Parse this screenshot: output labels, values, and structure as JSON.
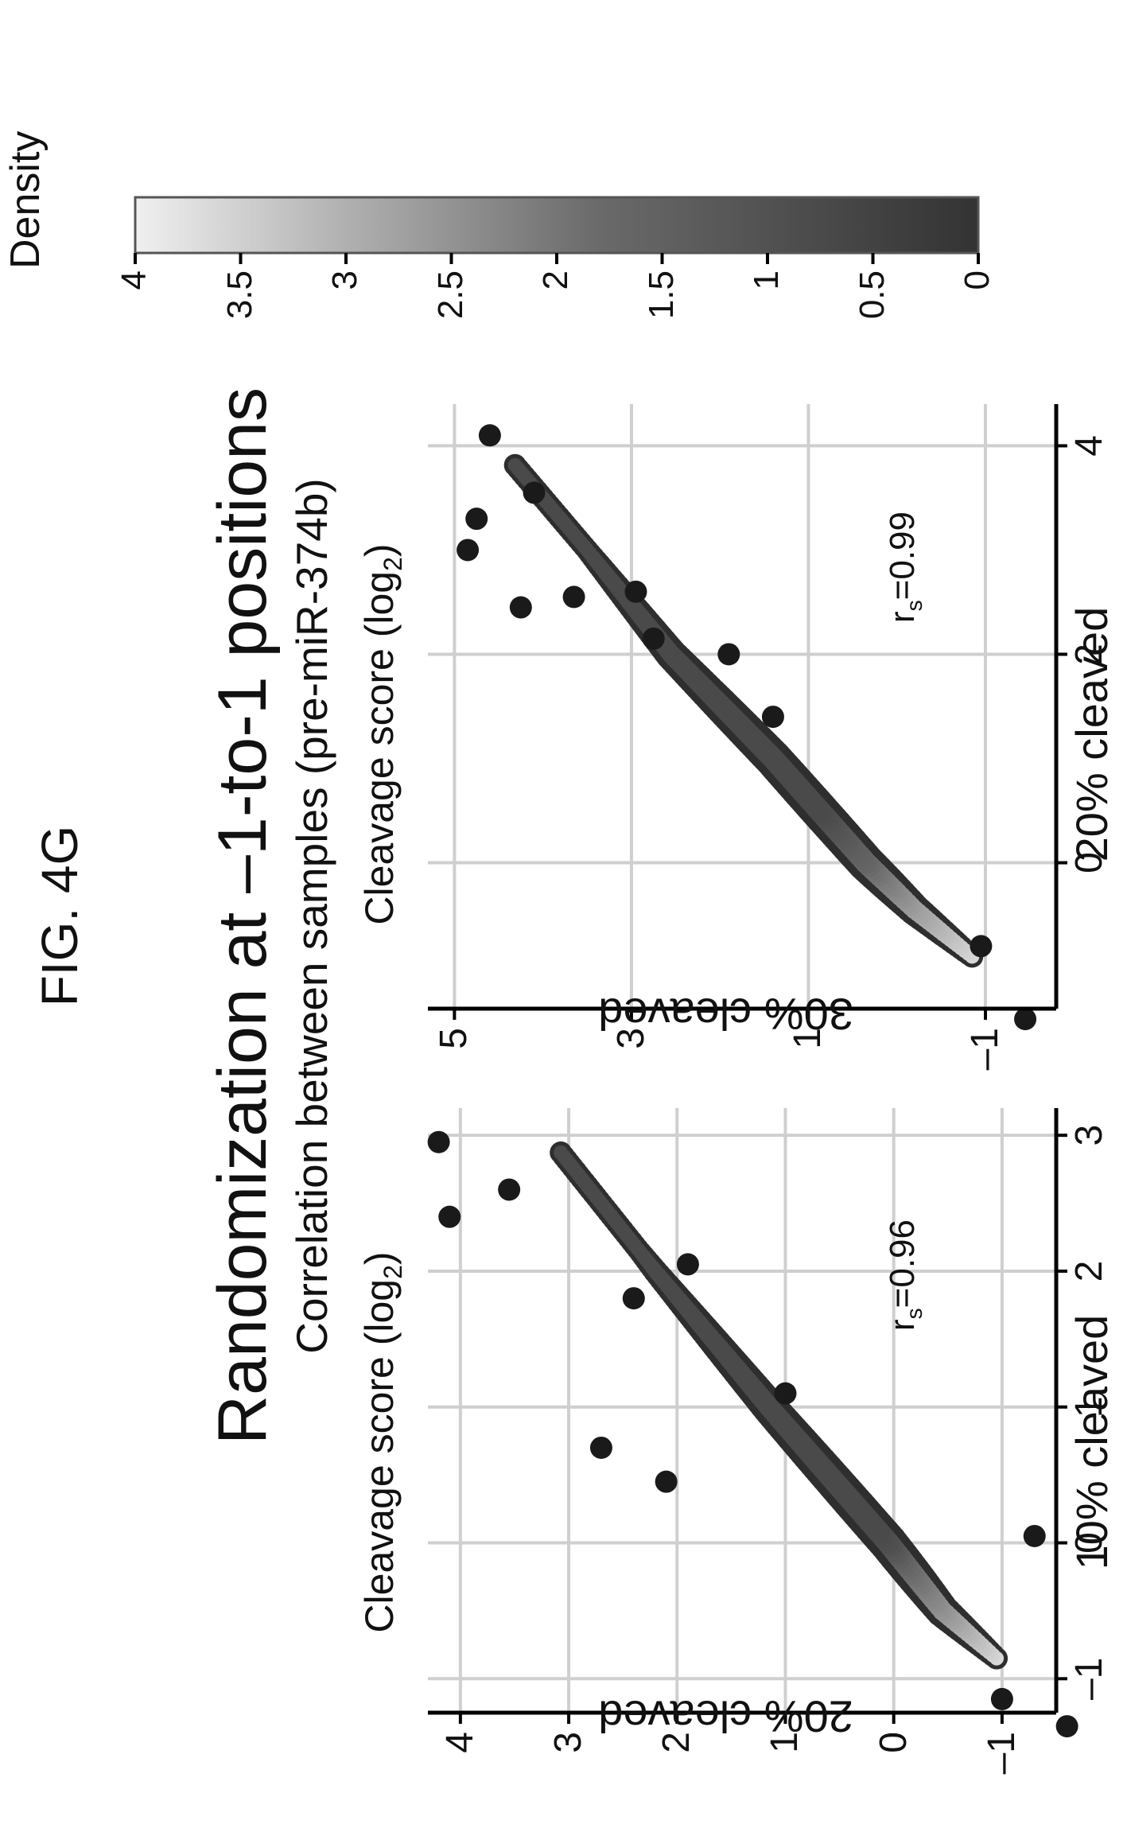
{
  "figure_label": "FIG. 4G",
  "title": "Randomization at –1-to-1 positions",
  "subtitle": "Correlation between samples (pre-miR-374b)",
  "colors": {
    "low_density": "#333333",
    "high_density": "#f0f0f0",
    "grid": "#cfcfcf",
    "axis": "#000000"
  },
  "chart_data": [
    {
      "type": "scatter",
      "title": "Cleavage score (log",
      "title_sub": "2",
      "title_end": ")",
      "xlabel": "10% cleaved",
      "ylabel": "20% cleaved",
      "xlim": [
        -1.25,
        3.2
      ],
      "ylim": [
        -1.5,
        4.3
      ],
      "xticks": [
        -1,
        0,
        1,
        2,
        3
      ],
      "xtick_labels": [
        "–1",
        "0",
        "1",
        "2",
        "3"
      ],
      "yticks": [
        -1,
        0,
        1,
        2,
        3,
        4
      ],
      "ytick_labels": [
        "–1",
        "0",
        "1",
        "2",
        "3",
        "4"
      ],
      "grid": true,
      "correlation_label": "r",
      "correlation_sub": "s",
      "correlation_value": "=0.96",
      "trend": [
        [
          -0.85,
          -0.95
        ],
        [
          -0.5,
          -0.45
        ],
        [
          0,
          0.05
        ],
        [
          1,
          1.15
        ],
        [
          2,
          2.2
        ],
        [
          2.9,
          3.1
        ]
      ],
      "outliers": [
        [
          -1.15,
          -1.0
        ],
        [
          -1.35,
          -1.6
        ],
        [
          0.7,
          2.7
        ],
        [
          0.45,
          2.1
        ],
        [
          1.1,
          1.0
        ],
        [
          1.8,
          2.4
        ],
        [
          0.05,
          -1.3
        ],
        [
          2.4,
          4.1
        ],
        [
          2.95,
          4.2
        ],
        [
          2.6,
          3.55
        ],
        [
          2.05,
          1.9
        ]
      ]
    },
    {
      "type": "scatter",
      "title": "Cleavage score (log",
      "title_sub": "2",
      "title_end": ")",
      "xlabel": "20% cleaved",
      "ylabel": "30% cleaved",
      "xlim": [
        -1.4,
        4.4
      ],
      "ylim": [
        -1.8,
        5.3
      ],
      "xticks": [
        0,
        2,
        4
      ],
      "xtick_labels": [
        "0",
        "2",
        "4"
      ],
      "yticks": [
        -1,
        1,
        3,
        5
      ],
      "ytick_labels": [
        "–1",
        "1",
        "3",
        "5"
      ],
      "grid": true,
      "correlation_label": "r",
      "correlation_sub": "s",
      "correlation_value": "=0.99",
      "trend": [
        [
          -0.9,
          -0.85
        ],
        [
          -0.45,
          -0.2
        ],
        [
          0,
          0.35
        ],
        [
          1,
          1.4
        ],
        [
          2,
          2.55
        ],
        [
          3,
          3.5
        ],
        [
          3.85,
          4.35
        ]
      ],
      "outliers": [
        [
          -0.8,
          -0.95
        ],
        [
          -1.5,
          -1.45
        ],
        [
          3.0,
          4.85
        ],
        [
          2.45,
          4.25
        ],
        [
          2.55,
          3.65
        ],
        [
          3.3,
          4.75
        ],
        [
          2.6,
          2.95
        ],
        [
          2.0,
          1.9
        ],
        [
          1.4,
          1.4
        ],
        [
          2.15,
          2.75
        ],
        [
          3.55,
          4.1
        ],
        [
          4.1,
          4.6
        ]
      ]
    }
  ],
  "legend": {
    "title": "Density",
    "range": [
      0,
      4
    ],
    "ticks": [
      "4",
      "3.5",
      "3",
      "2.5",
      "2",
      "1.5",
      "1",
      "0.5",
      "0"
    ]
  }
}
